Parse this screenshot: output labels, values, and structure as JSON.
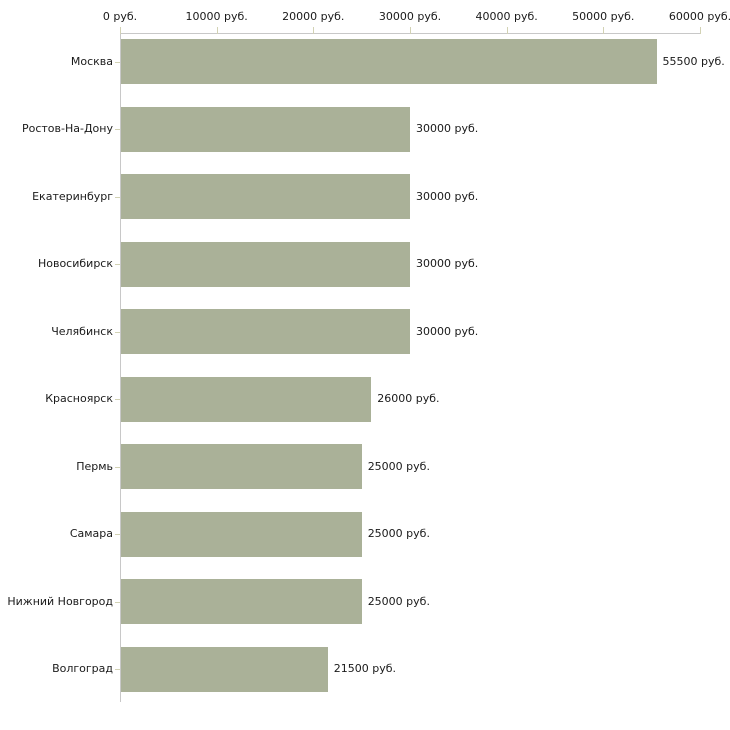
{
  "chart_data": {
    "type": "bar",
    "orientation": "horizontal",
    "title": "",
    "xlabel": "",
    "ylabel": "",
    "unit": "руб.",
    "xlim": [
      0,
      60000
    ],
    "grid": false,
    "legend": "none",
    "categories": [
      "Москва",
      "Ростов-На-Дону",
      "Екатеринбург",
      "Новосибирск",
      "Челябинск",
      "Красноярск",
      "Пермь",
      "Самара",
      "Нижний Новгород",
      "Волгоград"
    ],
    "values": [
      55500,
      30000,
      30000,
      30000,
      30000,
      26000,
      25000,
      25000,
      25000,
      21500
    ],
    "value_labels": [
      "55500 руб.",
      "30000 руб.",
      "30000 руб.",
      "30000 руб.",
      "30000 руб.",
      "26000 руб.",
      "25000 руб.",
      "25000 руб.",
      "25000 руб.",
      "21500 руб."
    ],
    "x_tick_values": [
      0,
      10000,
      20000,
      30000,
      40000,
      50000,
      60000
    ],
    "x_tick_labels": [
      "0 руб.",
      "10000 руб.",
      "20000 руб.",
      "30000 руб.",
      "40000 руб.",
      "50000 руб.",
      "60000 руб."
    ],
    "colors": {
      "bar": "#aab198",
      "axis_line": "#c8c8c8",
      "tick": "#d2d2b4",
      "text": "#1a1a1a",
      "background": "#ffffff"
    }
  }
}
